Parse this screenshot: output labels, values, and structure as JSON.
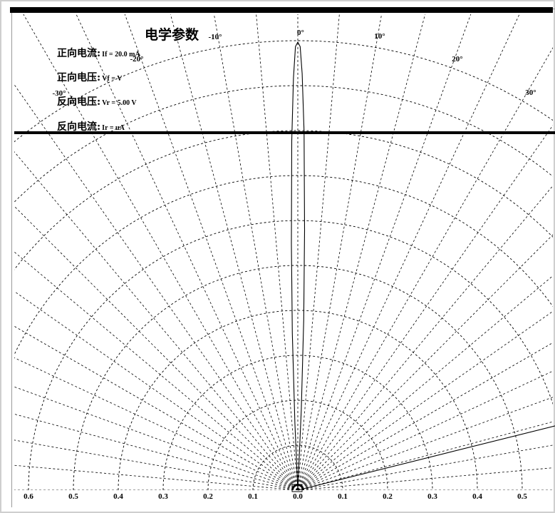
{
  "panel": {
    "title": "电学参数",
    "rows": [
      {
        "label": "正向电流:",
        "value": "If = 20.0 mA"
      },
      {
        "label": "正向电压:",
        "value": "Vf =    V"
      },
      {
        "label": "反向电压:",
        "value": "Vr = 5.00 V"
      },
      {
        "label": "反向电流:",
        "value": "Ir =    uA"
      }
    ]
  },
  "chart_data": {
    "type": "polar",
    "radial_ticks_left": [
      "0.6",
      "0.5",
      "0.4",
      "0.3",
      "0.2",
      "0.1",
      "0.0"
    ],
    "radial_ticks_right": [
      "0.1",
      "0.2",
      "0.3",
      "0.4",
      "0.5"
    ],
    "angle_labels": [
      "-30°",
      "-20°",
      "-10°",
      "0°",
      "10°",
      "20°",
      "30°"
    ],
    "angle_step_deg": 5,
    "angle_range_deg": [
      -90,
      90
    ],
    "radial_range": [
      0,
      1.0
    ],
    "grid": true,
    "series": [
      {
        "relative_intensity": [
          [
            -3.0,
            0.0
          ],
          [
            -2.5,
            0.15
          ],
          [
            -2.0,
            0.35
          ],
          [
            -1.5,
            0.55
          ],
          [
            -1.0,
            0.78
          ],
          [
            -0.6,
            0.92
          ],
          [
            -0.3,
            0.99
          ],
          [
            0.0,
            1.0
          ],
          [
            0.3,
            0.99
          ],
          [
            0.6,
            0.93
          ],
          [
            1.0,
            0.8
          ],
          [
            1.5,
            0.58
          ],
          [
            2.0,
            0.38
          ],
          [
            2.5,
            0.18
          ],
          [
            3.0,
            0.0
          ]
        ]
      },
      {
        "relative_intensity": [
          [
            75.0,
            0.0
          ],
          [
            76.0,
            0.6
          ]
        ]
      }
    ]
  }
}
